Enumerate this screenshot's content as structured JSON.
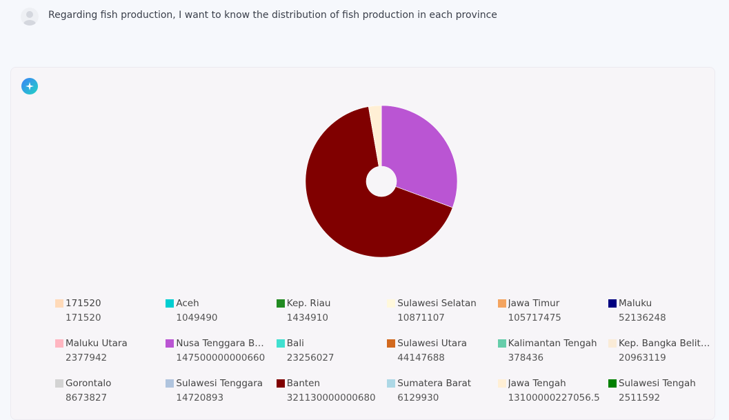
{
  "prompt": "Regarding fish production, I want to know the distribution of fish production in each province",
  "chart_data": {
    "type": "pie",
    "categories": [
      "171520",
      "Aceh",
      "Kep. Riau",
      "Sulawesi Selatan",
      "Jawa Timur",
      "Maluku",
      "Maluku Utara",
      "Nusa Tenggara Barat",
      "Bali",
      "Sulawesi Utara",
      "Kalimantan Tengah",
      "Kep. Bangka Belitung",
      "Gorontalo",
      "Sulawesi Tenggara",
      "Banten",
      "Sumatera Barat",
      "Jawa Tengah",
      "Sulawesi Tengah"
    ],
    "values": [
      171520,
      1049490,
      1434910,
      10871107,
      105717475,
      52136248,
      2377942,
      147500000000660,
      23256027,
      44147688,
      378436,
      20963119,
      8673827,
      14720893,
      321130000000680,
      6129930,
      13100000227056.5,
      2511592
    ],
    "colors": [
      "#ffdab9",
      "#00ced1",
      "#228b22",
      "#fff8dc",
      "#f4a460",
      "#000080",
      "#ffb6c1",
      "#ba55d3",
      "#40e0d0",
      "#d2691e",
      "#66cdaa",
      "#faebd7",
      "#d3d3d3",
      "#b0c4de",
      "#800000",
      "#add8e6",
      "#ffefd5",
      "#008000"
    ]
  }
}
